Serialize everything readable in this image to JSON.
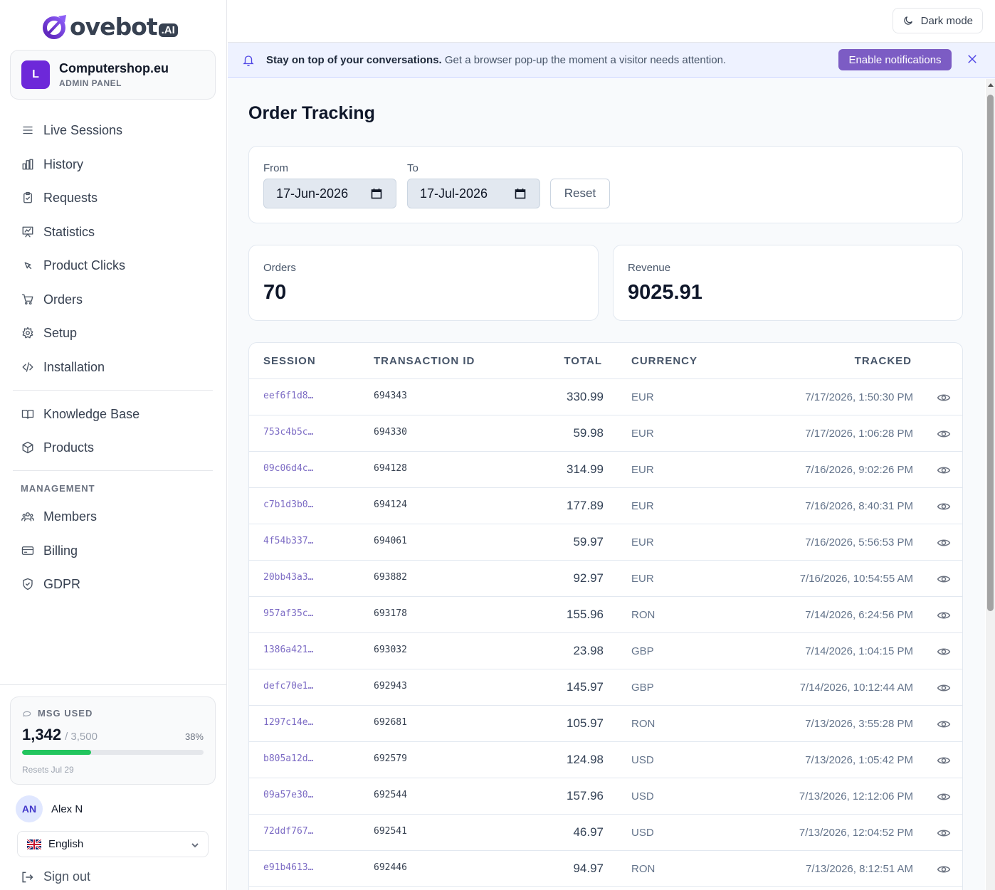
{
  "brand": {
    "name": "ovebot",
    "suffix": ".AI"
  },
  "workspace": {
    "initial": "L",
    "name": "Computershop.eu",
    "subtitle": "ADMIN PANEL"
  },
  "nav": {
    "primary": [
      {
        "label": "Live Sessions",
        "icon": "list-icon"
      },
      {
        "label": "History",
        "icon": "bar-chart-icon"
      },
      {
        "label": "Requests",
        "icon": "clipboard-icon"
      },
      {
        "label": "Statistics",
        "icon": "presentation-chart-icon"
      },
      {
        "label": "Product Clicks",
        "icon": "cursor-click-icon"
      },
      {
        "label": "Orders",
        "icon": "cart-icon"
      },
      {
        "label": "Setup",
        "icon": "gear-icon"
      },
      {
        "label": "Installation",
        "icon": "code-icon"
      }
    ],
    "secondary": [
      {
        "label": "Knowledge Base",
        "icon": "book-icon"
      },
      {
        "label": "Products",
        "icon": "box-icon"
      }
    ],
    "management_label": "MANAGEMENT",
    "management": [
      {
        "label": "Members",
        "icon": "users-icon"
      },
      {
        "label": "Billing",
        "icon": "credit-card-icon"
      },
      {
        "label": "GDPR",
        "icon": "shield-icon"
      }
    ]
  },
  "usage": {
    "label": "MSG USED",
    "used": "1,342",
    "total": "/ 3,500",
    "percent_label": "38%",
    "fraction": 0.38,
    "reset": "Resets Jul 29"
  },
  "user": {
    "initials": "AN",
    "name": "Alex N"
  },
  "language": {
    "selected": "English"
  },
  "signout_label": "Sign out",
  "topbar": {
    "dark_mode_label": "Dark mode"
  },
  "notice": {
    "bold": "Stay on top of your conversations.",
    "text": " Get a browser pop-up the moment a visitor needs attention.",
    "button": "Enable notifications"
  },
  "page": {
    "title": "Order Tracking"
  },
  "filters": {
    "from_label": "From",
    "from_value": "17-Jun-2026",
    "to_label": "To",
    "to_value": "17-Jul-2026",
    "reset_label": "Reset"
  },
  "stats": {
    "orders_label": "Orders",
    "orders_value": "70",
    "revenue_label": "Revenue",
    "revenue_value": "9025.91"
  },
  "table": {
    "headers": {
      "session": "SESSION",
      "transaction": "TRANSACTION ID",
      "total": "TOTAL",
      "currency": "CURRENCY",
      "tracked": "TRACKED"
    },
    "rows": [
      {
        "session": "eef6f1d8…",
        "tx": "694343",
        "total": "330.99",
        "currency": "EUR",
        "tracked": "7/17/2026, 1:50:30 PM"
      },
      {
        "session": "753c4b5c…",
        "tx": "694330",
        "total": "59.98",
        "currency": "EUR",
        "tracked": "7/17/2026, 1:06:28 PM"
      },
      {
        "session": "09c06d4c…",
        "tx": "694128",
        "total": "314.99",
        "currency": "EUR",
        "tracked": "7/16/2026, 9:02:26 PM"
      },
      {
        "session": "c7b1d3b0…",
        "tx": "694124",
        "total": "177.89",
        "currency": "EUR",
        "tracked": "7/16/2026, 8:40:31 PM"
      },
      {
        "session": "4f54b337…",
        "tx": "694061",
        "total": "59.97",
        "currency": "EUR",
        "tracked": "7/16/2026, 5:56:53 PM"
      },
      {
        "session": "20bb43a3…",
        "tx": "693882",
        "total": "92.97",
        "currency": "EUR",
        "tracked": "7/16/2026, 10:54:55 AM"
      },
      {
        "session": "957af35c…",
        "tx": "693178",
        "total": "155.96",
        "currency": "RON",
        "tracked": "7/14/2026, 6:24:56 PM"
      },
      {
        "session": "1386a421…",
        "tx": "693032",
        "total": "23.98",
        "currency": "GBP",
        "tracked": "7/14/2026, 1:04:15 PM"
      },
      {
        "session": "defc70e1…",
        "tx": "692943",
        "total": "145.97",
        "currency": "GBP",
        "tracked": "7/14/2026, 10:12:44 AM"
      },
      {
        "session": "1297c14e…",
        "tx": "692681",
        "total": "105.97",
        "currency": "RON",
        "tracked": "7/13/2026, 3:55:28 PM"
      },
      {
        "session": "b805a12d…",
        "tx": "692579",
        "total": "124.98",
        "currency": "USD",
        "tracked": "7/13/2026, 1:05:42 PM"
      },
      {
        "session": "09a57e30…",
        "tx": "692544",
        "total": "157.96",
        "currency": "USD",
        "tracked": "7/13/2026, 12:12:06 PM"
      },
      {
        "session": "72ddf767…",
        "tx": "692541",
        "total": "46.97",
        "currency": "USD",
        "tracked": "7/13/2026, 12:04:52 PM"
      },
      {
        "session": "e91b4613…",
        "tx": "692446",
        "total": "94.97",
        "currency": "RON",
        "tracked": "7/13/2026, 8:12:51 AM"
      }
    ]
  },
  "colors": {
    "accent": "#7c5cc4",
    "brand_purple": "#6d28d9",
    "progress": "#22c55e"
  }
}
